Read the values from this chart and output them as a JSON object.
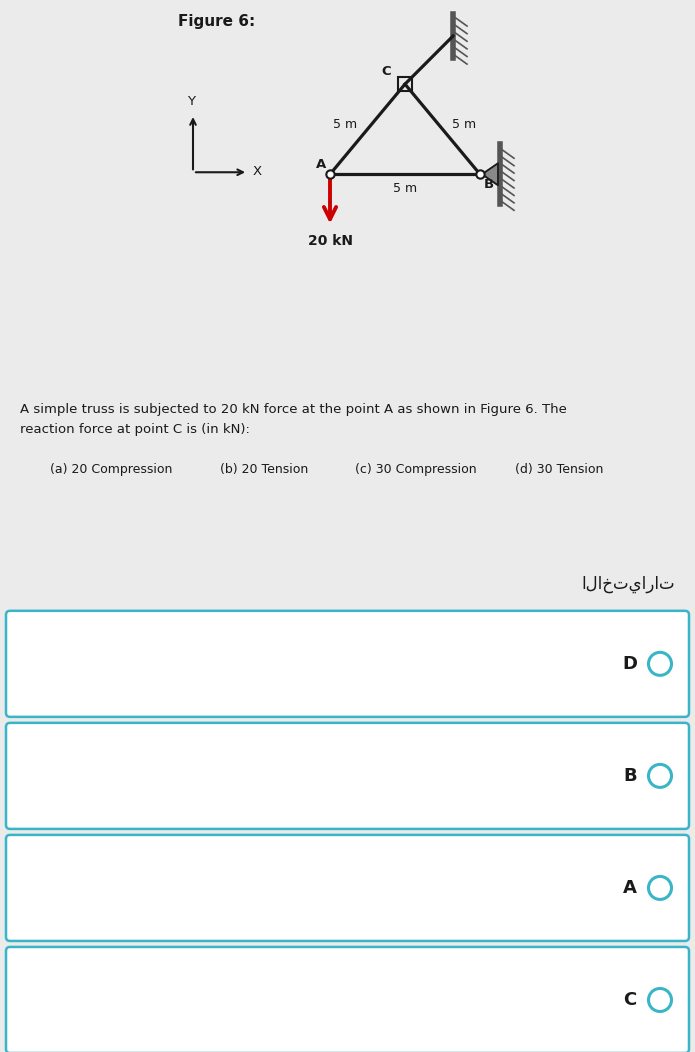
{
  "figure_title": "Figure 6:",
  "bg_top": "#ebebeb",
  "bg_bottom": "#e2e5ea",
  "bg_white": "#f5f5f5",
  "truss_color": "#1a1a1a",
  "force_color": "#cc0000",
  "wall_color": "#666666",
  "node_color": "#ffffff",
  "node_edge": "#1a1a1a",
  "question_text": "A simple truss is subjected to 20 kN force at the point A as shown in Figure 6. The\nreaction force at point C is (in kN):",
  "option_a": "(a) 20 Compression",
  "option_b": "(b) 20 Tension",
  "option_c": "(c) 30 Compression",
  "option_d": "(d) 30 Tension",
  "arabic_header": "الاختيارات",
  "answer_labels": [
    "D",
    "B",
    "A",
    "C"
  ],
  "circle_color": "#3ab5c8",
  "answer_bg": "#ffffff",
  "answer_border": "#3ab5c8",
  "label_5m_AC": "5 m",
  "label_5m_BC": "5 m",
  "label_5m_AB": "5 m",
  "label_20kn": "20 kN",
  "label_A": "A",
  "label_B": "B",
  "label_C": "C",
  "label_X": "X",
  "label_Y": "Y"
}
